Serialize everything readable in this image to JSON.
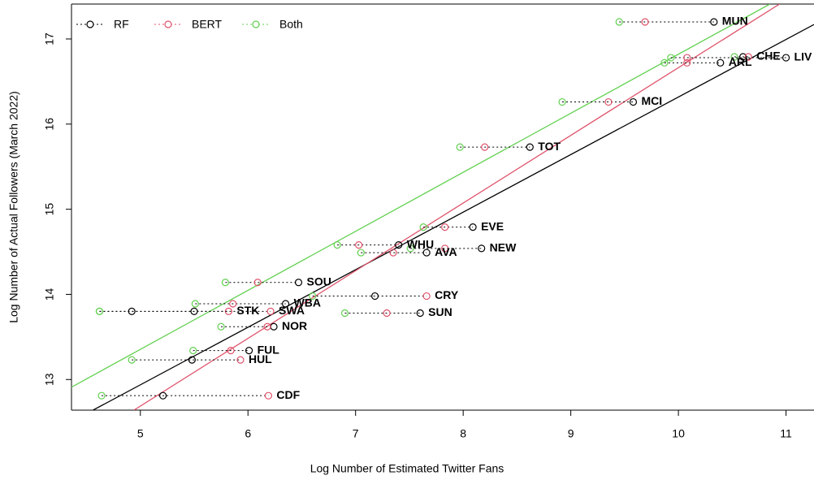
{
  "chart_data": {
    "type": "scatter",
    "xlabel": "Log Number of Estimated Twitter Fans",
    "ylabel": "Log Number of Actual Followers (March 2022)",
    "labels": [
      "MUN",
      "CHE",
      "LIV",
      "ARL",
      "MCI",
      "TOT",
      "EVE",
      "WHU",
      "AVA",
      "NEW",
      "SOU",
      "CRY",
      "WBA",
      "STK",
      "SWA",
      "SUN",
      "NOR",
      "FUL",
      "HUL",
      "CDF"
    ],
    "y": [
      17.2,
      16.79,
      16.78,
      16.72,
      16.26,
      15.73,
      14.79,
      14.58,
      14.49,
      14.54,
      14.14,
      13.98,
      13.89,
      13.8,
      13.8,
      13.78,
      13.62,
      13.34,
      13.23,
      12.81
    ],
    "series": [
      {
        "name": "RF",
        "color": "#000000",
        "x": [
          10.33,
          10.6,
          11.0,
          10.39,
          9.58,
          8.62,
          8.09,
          7.4,
          7.66,
          8.17,
          6.47,
          7.18,
          6.35,
          5.5,
          4.92,
          7.6,
          6.24,
          6.01,
          5.48,
          5.21
        ],
        "fit": {
          "x": [
            4.56,
            11.26
          ],
          "y": [
            12.64,
            17.17
          ]
        }
      },
      {
        "name": "BERT",
        "color": "#df536b",
        "x": [
          9.69,
          10.65,
          10.08,
          10.08,
          9.35,
          8.2,
          7.83,
          7.03,
          7.35,
          7.83,
          6.09,
          7.66,
          5.86,
          5.82,
          6.21,
          7.29,
          6.18,
          5.84,
          5.93,
          6.19
        ],
        "fit": {
          "x": [
            4.94,
            10.94
          ],
          "y": [
            12.64,
            17.41
          ]
        }
      },
      {
        "name": "Both",
        "color": "#61d04f",
        "x": [
          9.45,
          10.52,
          9.93,
          9.87,
          8.92,
          7.97,
          7.63,
          6.83,
          7.05,
          7.51,
          5.79,
          6.6,
          5.51,
          4.62,
          4.62,
          6.9,
          5.75,
          5.49,
          4.92,
          4.64
        ],
        "fit": {
          "x": [
            4.36,
            10.85
          ],
          "y": [
            12.91,
            17.41
          ]
        }
      }
    ],
    "xlim": [
      4.36,
      11.26
    ],
    "ylim": [
      12.64,
      17.41
    ],
    "xticks": [
      5,
      6,
      7,
      8,
      9,
      10,
      11
    ],
    "yticks": [
      13,
      14,
      15,
      16,
      17
    ],
    "legend": "top-left"
  }
}
